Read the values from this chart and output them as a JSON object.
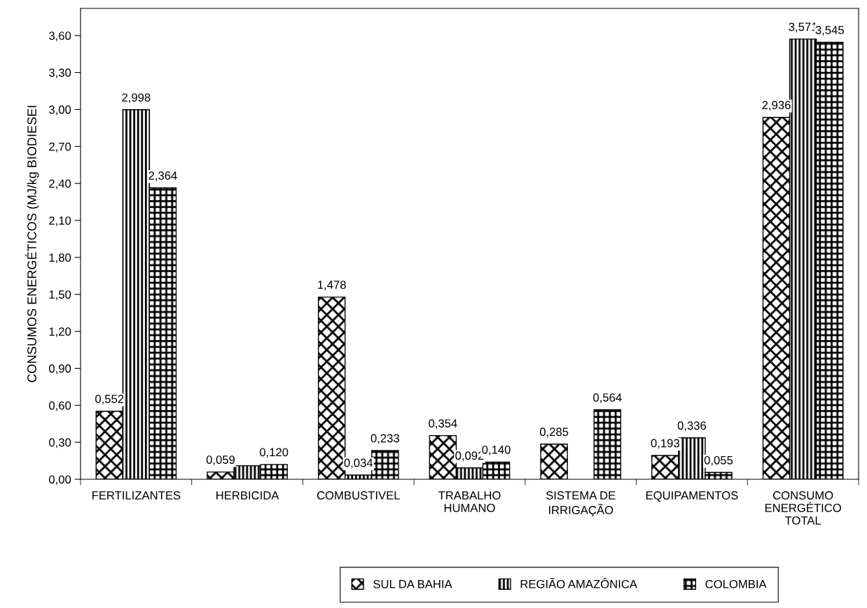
{
  "chart_data": {
    "type": "bar",
    "ylabel": "CONSUMOS ENERGÉTICOS (MJ/kg BIODIESEI",
    "categories": [
      "FERTILIZANTES",
      "HERBICIDA",
      "COMBUSTIVEL",
      "TRABALHO\nHUMANO",
      "SISTEMA DE\nIRRIGAÇÃO",
      "EQUIPAMENTOS",
      "CONSUMO\nENERGÉTICO\nTOTAL"
    ],
    "series": [
      {
        "name": "SUL DA BAHIA",
        "color": "#000000",
        "values": [
          0.552,
          0.059,
          1.478,
          0.354,
          0.285,
          0.193,
          2.936
        ],
        "value_labels": [
          "0,552",
          "0,059",
          "1,478",
          "0,354",
          "0,285",
          "0,193",
          "2,936"
        ]
      },
      {
        "name": "REGIÃO AMAZÔNICA",
        "color": "#000000",
        "values": [
          2.998,
          0.11,
          0.034,
          0.092,
          null,
          0.336,
          3.571
        ],
        "value_labels": [
          "2,998",
          null,
          "0,034",
          "0,092",
          null,
          "0,336",
          "3,571"
        ]
      },
      {
        "name": "COLOMBIA",
        "color": "#000000",
        "values": [
          2.364,
          0.12,
          0.233,
          0.14,
          0.564,
          0.055,
          3.545
        ],
        "value_labels": [
          "2,364",
          "0,120",
          "0,233",
          "0,140",
          "0,564",
          "0,055",
          "3,545"
        ]
      }
    ],
    "ylim": [
      0,
      3.82
    ],
    "yticks": [
      {
        "value": 0,
        "label": "0,00"
      },
      {
        "value": 0.3,
        "label": "0,30"
      },
      {
        "value": 0.6,
        "label": "0,60"
      },
      {
        "value": 0.9,
        "label": "0,90"
      },
      {
        "value": 1.2,
        "label": "1,20"
      },
      {
        "value": 1.5,
        "label": "1,50"
      },
      {
        "value": 1.8,
        "label": "1,80"
      },
      {
        "value": 2.1,
        "label": "2,10"
      },
      {
        "value": 2.4,
        "label": "2,40"
      },
      {
        "value": 2.7,
        "label": "2,70"
      },
      {
        "value": 3.0,
        "label": "3,00"
      },
      {
        "value": 3.3,
        "label": "3,30"
      },
      {
        "value": 3.6,
        "label": "3,60"
      }
    ],
    "grid": false,
    "legend": "bottom"
  }
}
